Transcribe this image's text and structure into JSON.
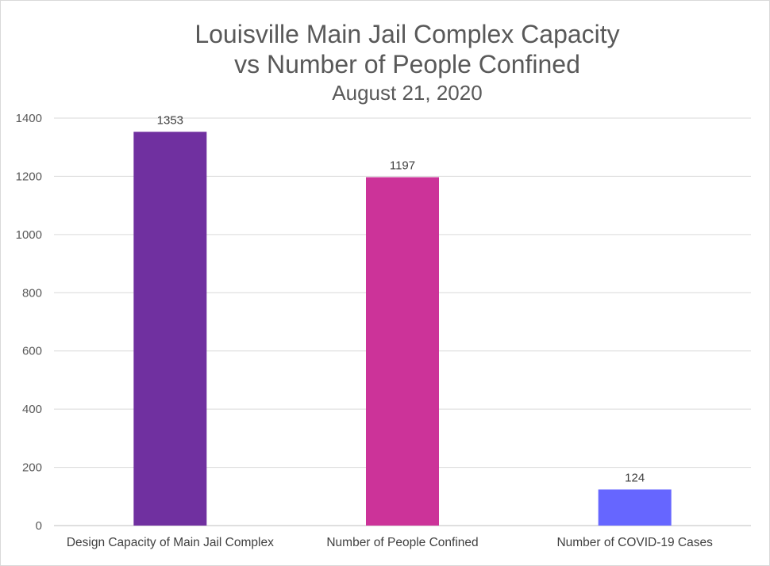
{
  "chart_data": {
    "type": "bar",
    "title": "Louisville Main Jail Complex Capacity vs Number of People Confined",
    "title_lines": [
      "Louisville Main Jail Complex Capacity",
      "vs Number of People Confined"
    ],
    "subtitle": "August 21, 2020",
    "xlabel": "",
    "ylabel": "",
    "categories": [
      "Design Capacity of Main Jail Complex",
      "Number of People Confined",
      "Number of COVID-19 Cases"
    ],
    "values": [
      1353,
      1197,
      124
    ],
    "data_labels": [
      "1353",
      "1197",
      "124"
    ],
    "bar_colors": [
      "#7030a0",
      "#cc3399",
      "#6666ff"
    ],
    "ylim": [
      0,
      1400
    ],
    "yticks": [
      0,
      200,
      400,
      600,
      800,
      1000,
      1200,
      1400
    ],
    "grid": true,
    "legend": "none"
  }
}
